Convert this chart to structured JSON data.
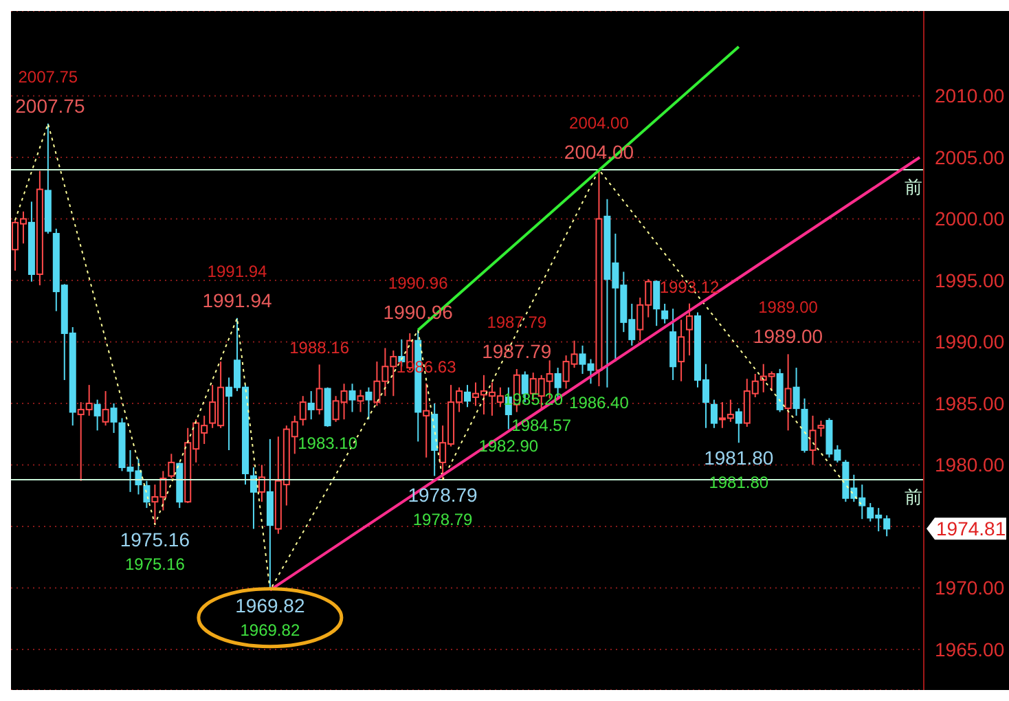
{
  "chart_data": {
    "type": "candlestick",
    "categories": [
      null,
      null,
      null,
      null,
      null,
      null,
      null,
      null,
      null,
      null,
      null,
      null,
      null,
      null,
      null,
      null,
      null,
      null,
      null,
      null,
      null,
      null,
      null,
      null,
      null,
      null,
      null,
      null,
      null,
      null,
      null,
      null,
      null,
      null,
      null,
      null,
      null,
      null,
      null,
      null,
      null,
      null,
      null,
      null,
      null,
      null,
      null,
      null,
      null,
      null,
      null,
      null,
      null,
      null,
      null,
      null,
      null,
      null,
      null,
      null,
      null,
      null,
      null,
      null,
      null,
      null,
      null,
      null,
      null,
      null,
      null,
      null,
      null,
      null,
      null,
      null,
      null,
      null,
      null,
      null,
      null,
      null,
      null,
      null,
      null,
      null,
      null,
      null,
      null,
      null,
      null,
      null,
      null,
      null,
      null,
      null,
      null,
      null,
      null,
      null,
      null,
      null,
      null,
      null,
      null,
      null,
      null,
      null,
      null,
      null,
      null
    ],
    "ohlc": [
      [
        1997.5,
        1999.9,
        1995.8,
        1999.7
      ],
      [
        1999.6,
        2000.6,
        1998.0,
        2000.0
      ],
      [
        1999.7,
        2001.4,
        1994.9,
        1995.5
      ],
      [
        1995.5,
        2003.9,
        1994.6,
        2002.4
      ],
      [
        2002.3,
        2007.75,
        1998.8,
        1999.0
      ],
      [
        1998.8,
        1999.2,
        1992.5,
        1994.1
      ],
      [
        1994.6,
        1994.7,
        1986.9,
        1990.7
      ],
      [
        1990.7,
        1991.2,
        1983.2,
        1984.3
      ],
      [
        1984.1,
        1985.1,
        1978.7,
        1984.5
      ],
      [
        1984.5,
        1986.5,
        1984.0,
        1985.0
      ],
      [
        1984.9,
        1985.3,
        1982.8,
        1984.0
      ],
      [
        1983.5,
        1986.0,
        1983.2,
        1984.5
      ],
      [
        1984.6,
        1985.0,
        1982.6,
        1983.5
      ],
      [
        1983.4,
        1983.8,
        1979.5,
        1979.8
      ],
      [
        1979.8,
        1981.2,
        1977.8,
        1979.5
      ],
      [
        1979.5,
        1980.5,
        1977.6,
        1978.4
      ],
      [
        1978.3,
        1978.7,
        1976.5,
        1977.0
      ],
      [
        1977.0,
        1978.4,
        1975.16,
        1977.4
      ],
      [
        1977.4,
        1979.5,
        1976.3,
        1978.9
      ],
      [
        1979.1,
        1980.9,
        1978.9,
        1980.2
      ],
      [
        1980.1,
        1980.2,
        1976.5,
        1977.0
      ],
      [
        1977.0,
        1983.0,
        1976.9,
        1981.8
      ],
      [
        1981.3,
        1983.7,
        1980.2,
        1983.4
      ],
      [
        1982.6,
        1984.0,
        1981.7,
        1983.2
      ],
      [
        1983.4,
        1986.5,
        1983.0,
        1985.1
      ],
      [
        1983.2,
        1988.4,
        1983.0,
        1986.3
      ],
      [
        1986.3,
        1987.1,
        1981.2,
        1985.6
      ],
      [
        1988.5,
        1991.94,
        1986.0,
        1986.3
      ],
      [
        1986.3,
        1986.5,
        1978.4,
        1979.3
      ],
      [
        1979.1,
        1979.8,
        1974.8,
        1977.8
      ],
      [
        1977.8,
        1980.0,
        1977.0,
        1979.0
      ],
      [
        1977.8,
        1982.1,
        1969.82,
        1975.1
      ],
      [
        1974.8,
        1982.3,
        1974.4,
        1978.7
      ],
      [
        1978.4,
        1983.2,
        1976.7,
        1982.9
      ],
      [
        1982.3,
        1984.0,
        1980.9,
        1983.5
      ],
      [
        1983.7,
        1985.6,
        1983.2,
        1985.1
      ],
      [
        1985.0,
        1986.0,
        1983.7,
        1984.5
      ],
      [
        1984.5,
        1988.16,
        1984.1,
        1986.2
      ],
      [
        1986.2,
        1986.3,
        1983.1,
        1983.2
      ],
      [
        1983.7,
        1985.6,
        1983.5,
        1985.2
      ],
      [
        1985.1,
        1986.6,
        1983.7,
        1986.0
      ],
      [
        1986.0,
        1986.6,
        1984.3,
        1985.3
      ],
      [
        1985.2,
        1986.1,
        1984.3,
        1985.6
      ],
      [
        1985.9,
        1986.3,
        1983.7,
        1985.3
      ],
      [
        1985.1,
        1988.4,
        1984.8,
        1986.8
      ],
      [
        1986.8,
        1989.5,
        1985.6,
        1988.0
      ],
      [
        1988.0,
        1989.3,
        1985.6,
        1988.8
      ],
      [
        1988.8,
        1990.2,
        1988.0,
        1988.4
      ],
      [
        1987.9,
        1990.7,
        1987.7,
        1990.1
      ],
      [
        1990.1,
        1990.96,
        1981.9,
        1984.3
      ],
      [
        1984.0,
        1986.63,
        1980.6,
        1984.4
      ],
      [
        1984.1,
        1985.0,
        1979.1,
        1981.2
      ],
      [
        1980.2,
        1983.2,
        1978.79,
        1981.8
      ],
      [
        1981.7,
        1986.5,
        1981.5,
        1985.1
      ],
      [
        1985.1,
        1986.3,
        1984.3,
        1986.0
      ],
      [
        1985.9,
        1986.5,
        1984.7,
        1985.2
      ],
      [
        1985.5,
        1986.7,
        1984.8,
        1985.8
      ],
      [
        1985.7,
        1987.3,
        1984.1,
        1986.0
      ],
      [
        1985.6,
        1986.7,
        1984.0,
        1985.9
      ],
      [
        1985.1,
        1986.3,
        1984.7,
        1985.6
      ],
      [
        1985.5,
        1986.3,
        1982.9,
        1984.1
      ],
      [
        1984.9,
        1987.79,
        1984.3,
        1987.3
      ],
      [
        1987.3,
        1987.6,
        1985.1,
        1985.8
      ],
      [
        1985.8,
        1987.5,
        1985.2,
        1987.0
      ],
      [
        1985.6,
        1987.3,
        1984.57,
        1987.0
      ],
      [
        1986.8,
        1988.5,
        1985.4,
        1987.4
      ],
      [
        1987.4,
        1987.9,
        1985.4,
        1986.3
      ],
      [
        1986.8,
        1988.9,
        1986.2,
        1988.4
      ],
      [
        1988.2,
        1990.1,
        1987.9,
        1989.0
      ],
      [
        1989.0,
        1989.7,
        1987.4,
        1988.2
      ],
      [
        1988.2,
        1988.6,
        1986.6,
        1987.7
      ],
      [
        1987.7,
        2004.0,
        1986.4,
        2000.0
      ],
      [
        2000.2,
        2001.6,
        1986.3,
        1995.1
      ],
      [
        1996.4,
        1998.8,
        1988.4,
        1994.4
      ],
      [
        1994.6,
        1995.7,
        1990.8,
        1991.6
      ],
      [
        1991.8,
        1993.1,
        1989.7,
        1990.2
      ],
      [
        1991.0,
        1993.6,
        1990.1,
        1993.0
      ],
      [
        1993.0,
        1995.1,
        1992.0,
        1994.9
      ],
      [
        1994.9,
        1995.0,
        1991.3,
        1992.7
      ],
      [
        1992.5,
        1993.1,
        1991.5,
        1991.9
      ],
      [
        1990.8,
        1992.7,
        1986.9,
        1988.0
      ],
      [
        1988.4,
        1991.8,
        1986.8,
        1990.4
      ],
      [
        1991.0,
        1993.12,
        1988.9,
        1992.1
      ],
      [
        1992.1,
        1992.4,
        1986.3,
        1986.9
      ],
      [
        1986.9,
        1988.2,
        1983.0,
        1985.1
      ],
      [
        1984.9,
        1985.3,
        1983.0,
        1983.4
      ],
      [
        1983.7,
        1985.1,
        1983.0,
        1983.8
      ],
      [
        1983.8,
        1985.3,
        1983.5,
        1984.1
      ],
      [
        1984.3,
        1984.6,
        1981.8,
        1983.4
      ],
      [
        1983.4,
        1987.0,
        1983.1,
        1986.0
      ],
      [
        1985.8,
        1987.4,
        1985.5,
        1986.8
      ],
      [
        1986.9,
        1988.2,
        1985.9,
        1987.2
      ],
      [
        1987.2,
        1987.6,
        1986.0,
        1987.4
      ],
      [
        1987.4,
        1987.8,
        1984.3,
        1984.5
      ],
      [
        1984.6,
        1989.0,
        1982.8,
        1986.2
      ],
      [
        1986.3,
        1987.9,
        1984.0,
        1984.6
      ],
      [
        1984.5,
        1985.4,
        1981.0,
        1981.2
      ],
      [
        1981.2,
        1984.0,
        1980.0,
        1982.8
      ],
      [
        1983.0,
        1983.6,
        1982.3,
        1983.2
      ],
      [
        1983.6,
        1983.8,
        1980.6,
        1980.9
      ],
      [
        1981.2,
        1981.6,
        1980.2,
        1980.4
      ],
      [
        1980.2,
        1980.4,
        1977.0,
        1977.3
      ],
      [
        1978.1,
        1979.2,
        1977.0,
        1977.3
      ],
      [
        1977.3,
        1978.4,
        1975.6,
        1976.7
      ],
      [
        1976.5,
        1976.9,
        1975.4,
        1975.7
      ],
      [
        1975.9,
        1976.5,
        1974.6,
        1975.7
      ],
      [
        1975.6,
        1975.9,
        1974.2,
        1974.81
      ],
      null,
      null,
      null,
      null
    ],
    "series": [
      {
        "type": "line",
        "color": "#ffff99",
        "line_style": "dotted",
        "values": [
          1999.9,
          null,
          null,
          null,
          2007.75,
          null,
          null,
          null,
          null,
          null,
          null,
          null,
          null,
          null,
          null,
          null,
          null,
          1975.16,
          null,
          null,
          null,
          null,
          null,
          null,
          null,
          null,
          null,
          1991.94,
          null,
          null,
          null,
          1969.82,
          null,
          null,
          null,
          null,
          null,
          null,
          null,
          null,
          null,
          null,
          null,
          null,
          null,
          null,
          null,
          null,
          null,
          1990.96,
          null,
          null,
          1978.79,
          null,
          null,
          null,
          null,
          null,
          null,
          null,
          null,
          null,
          null,
          null,
          null,
          null,
          null,
          null,
          null,
          null,
          null,
          2004.0,
          null,
          null,
          null,
          null,
          null,
          null,
          null,
          null,
          null,
          null,
          null,
          null,
          null,
          null,
          null,
          null,
          null,
          null,
          null,
          null,
          null,
          null,
          null,
          null,
          null,
          null,
          null,
          null,
          null,
          null,
          null,
          1976.7,
          null,
          null,
          null,
          null,
          null,
          null,
          null
        ]
      },
      {
        "type": "line",
        "color": "#ff2d8c",
        "values": [
          null,
          null,
          null,
          null,
          null,
          null,
          null,
          null,
          null,
          null,
          null,
          null,
          null,
          null,
          null,
          null,
          null,
          null,
          null,
          null,
          null,
          null,
          null,
          null,
          null,
          null,
          null,
          null,
          null,
          null,
          null,
          1969.82,
          null,
          null,
          null,
          null,
          null,
          null,
          null,
          null,
          null,
          null,
          null,
          null,
          null,
          null,
          null,
          null,
          null,
          null,
          null,
          null,
          null,
          null,
          null,
          null,
          null,
          null,
          null,
          null,
          null,
          null,
          null,
          null,
          null,
          null,
          null,
          null,
          null,
          null,
          null,
          null,
          null,
          null,
          null,
          null,
          null,
          null,
          null,
          null,
          null,
          null,
          null,
          null,
          null,
          null,
          null,
          null,
          null,
          null,
          null,
          null,
          null,
          null,
          null,
          null,
          null,
          null,
          null,
          null,
          null,
          null,
          null,
          null,
          null,
          null,
          null,
          null,
          null,
          null,
          2005.0
        ]
      },
      {
        "type": "line",
        "color": "#33ee33",
        "values": [
          null,
          null,
          null,
          null,
          null,
          null,
          null,
          null,
          null,
          null,
          null,
          null,
          null,
          null,
          null,
          null,
          null,
          null,
          null,
          null,
          null,
          null,
          null,
          null,
          null,
          null,
          null,
          null,
          null,
          null,
          null,
          null,
          null,
          null,
          null,
          null,
          null,
          null,
          null,
          null,
          null,
          null,
          null,
          null,
          null,
          null,
          null,
          null,
          null,
          1990.96,
          null,
          null,
          null,
          null,
          null,
          null,
          null,
          null,
          null,
          null,
          null,
          null,
          null,
          null,
          null,
          null,
          null,
          null,
          null,
          null,
          null,
          null,
          null,
          null,
          null,
          null,
          null,
          null,
          null,
          null,
          null,
          null,
          null,
          null,
          null,
          null,
          null,
          null,
          2014.0,
          null,
          null,
          null,
          null,
          null,
          null,
          null,
          null,
          null,
          null,
          null,
          null,
          null,
          null,
          null,
          null,
          null,
          null,
          null,
          null,
          null,
          null
        ]
      }
    ],
    "ylim": [
      1961.7,
      2016.9
    ],
    "yticks": [
      {
        "value": 1965,
        "label": "1965.00"
      },
      {
        "value": 1970,
        "label": "1970.00"
      },
      {
        "value": 1975,
        "label": null
      },
      {
        "value": 1980,
        "label": "1980.00"
      },
      {
        "value": 1985,
        "label": "1985.00"
      },
      {
        "value": 1990,
        "label": "1990.00"
      },
      {
        "value": 1995,
        "label": "1995.00"
      },
      {
        "value": 2000,
        "label": "2000.00"
      },
      {
        "value": 2005,
        "label": "2005.00"
      },
      {
        "value": 2010,
        "label": "2010.00"
      }
    ],
    "grid": "y",
    "tick_labels": "y",
    "ref_lines": [
      {
        "axis": "y",
        "value": 2004.0,
        "label": "前",
        "color": "#c8f5d8"
      },
      {
        "axis": "y",
        "value": 1978.79,
        "label": "前",
        "color": "#c8f5d8"
      }
    ],
    "annotations": [
      {
        "text": "2007.75",
        "y": 2007.75
      },
      {
        "text": "2007.75",
        "y": 2007.75
      },
      {
        "text": "1975.16",
        "y": 1975.16
      },
      {
        "text": "1975.16",
        "y": 1975.16
      },
      {
        "text": "1991.94",
        "y": 1991.94
      },
      {
        "text": "1991.94",
        "y": 1991.94
      },
      {
        "text": "1969.82",
        "y": 1969.82
      },
      {
        "text": "1969.82",
        "y": 1969.82
      },
      {
        "text": "1988.16",
        "y": 1988.16
      },
      {
        "text": "1983.10",
        "y": 1983.1
      },
      {
        "text": "1990.96",
        "y": 1990.96
      },
      {
        "text": "1990.96",
        "y": 1990.96
      },
      {
        "text": "1986.63",
        "y": 1986.63
      },
      {
        "text": "1978.79",
        "y": 1978.79
      },
      {
        "text": "1978.79",
        "y": 1978.79
      },
      {
        "text": "1987.79",
        "y": 1987.79
      },
      {
        "text": "1987.79",
        "y": 1987.79
      },
      {
        "text": "1982.90",
        "y": 1982.9
      },
      {
        "text": "1984.57",
        "y": 1984.57
      },
      {
        "text": "1985.20",
        "y": 1985.2
      },
      {
        "text": "1986.40",
        "y": 1986.4
      },
      {
        "text": "2004.00",
        "y": 2004.0
      },
      {
        "text": "2004.00",
        "y": 2004.0
      },
      {
        "text": "1993.12",
        "y": 1993.12
      },
      {
        "text": "1981.80",
        "y": 1981.8
      },
      {
        "text": "1981.80",
        "y": 1981.8
      },
      {
        "text": "1989.00",
        "y": 1989.0
      },
      {
        "text": "1989.00",
        "y": 1989.0
      },
      "1974.81"
    ]
  }
}
